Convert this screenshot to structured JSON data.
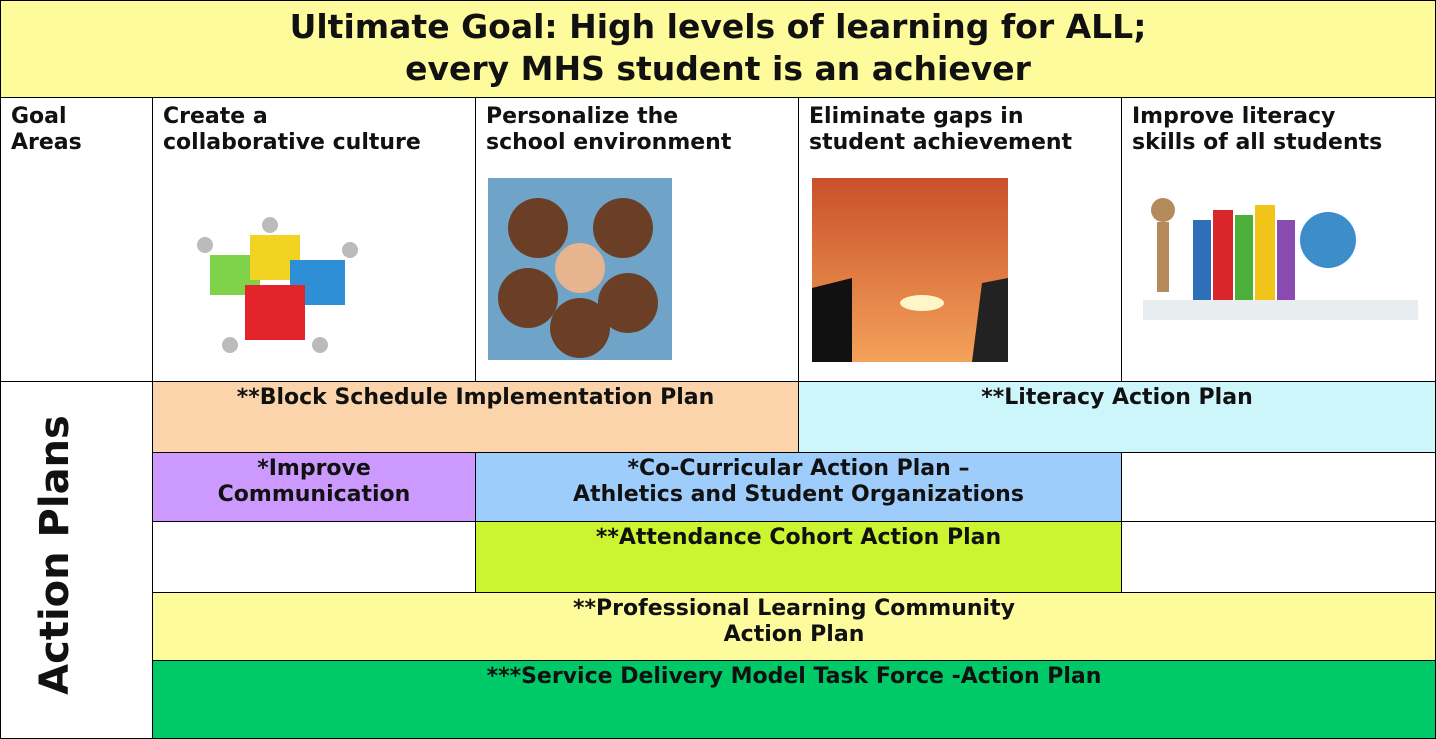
{
  "title": [
    "Ultimate Goal:  High levels of learning for ALL;",
    "every MHS student is an achiever"
  ],
  "goal_areas_label": [
    "Goal",
    "Areas"
  ],
  "goals": [
    [
      "Create a",
      "collaborative culture"
    ],
    [
      "Personalize the",
      "school environment"
    ],
    [
      "Eliminate gaps in",
      "student achievement"
    ],
    [
      "Improve literacy",
      "skills of all students"
    ]
  ],
  "action_plans_label": "Action Plans",
  "plans": [
    [
      "**Block Schedule Implementation Plan"
    ],
    [
      "**Literacy Action Plan"
    ],
    [
      "*Improve",
      "Communication"
    ],
    [
      "*Co-Curricular Action Plan –",
      "Athletics and Student Organizations"
    ],
    [
      "**Attendance Cohort Action Plan"
    ],
    [
      "**Professional Learning Community",
      "Action Plan"
    ],
    [
      "***Service Delivery Model Task Force -Action Plan"
    ]
  ]
}
